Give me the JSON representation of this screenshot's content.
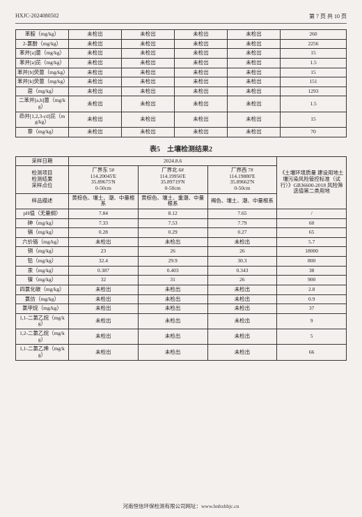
{
  "header": {
    "doc_id": "HXJC-2024080502",
    "page_info": "第 7 页 共 10 页"
  },
  "table1": {
    "col_widths": [
      "16%",
      "16%",
      "16%",
      "16%",
      "16%",
      "20%"
    ],
    "rows": [
      [
        "苯胺（mg/kg）",
        "未检出",
        "未检出",
        "未检出",
        "未检出",
        "260"
      ],
      [
        "2-氯酚（mg/kg）",
        "未检出",
        "未检出",
        "未检出",
        "未检出",
        "2256"
      ],
      [
        "苯并[a]蒽（mg/kg）",
        "未检出",
        "未检出",
        "未检出",
        "未检出",
        "15"
      ],
      [
        "苯并[a]芘（mg/kg）",
        "未检出",
        "未检出",
        "未检出",
        "未检出",
        "1.5"
      ],
      [
        "苯并[b]荧蒽（mg/kg）",
        "未检出",
        "未检出",
        "未检出",
        "未检出",
        "15"
      ],
      [
        "苯并[k]荧蒽（mg/kg）",
        "未检出",
        "未检出",
        "未检出",
        "未检出",
        "151"
      ],
      [
        "䓛（mg/kg）",
        "未检出",
        "未检出",
        "未检出",
        "未检出",
        "1293"
      ],
      [
        "二苯并[a,h]蒽（mg/kg）",
        "未检出",
        "未检出",
        "未检出",
        "未检出",
        "1.5"
      ],
      [
        "茚并[1,2,3-cd]芘（mg/kg）",
        "未检出",
        "未检出",
        "未检出",
        "未检出",
        "15"
      ],
      [
        "萘（mg/kg）",
        "未检出",
        "未检出",
        "未检出",
        "未检出",
        "70"
      ]
    ]
  },
  "caption2": "表5　土壤检测结果2",
  "table2": {
    "col_widths": [
      "16%",
      "21%",
      "21%",
      "21%",
      "21%"
    ],
    "head": {
      "r1c1": "采样日期",
      "r1c2": "2024.8.6",
      "r1c3": "《土壤环境质量 建设用地土壤污染风险管控标准（试行）》GB36600-2018 风险筛选值第二类用地",
      "r2c1": "检测项目\n检测结果\n采样点位",
      "r2c2": "厂界东 5#\n114.20045'E\n35.89675'N\n0-50cm",
      "r2c3": "厂界北 6#\n114.19956'E\n35.89719'N\n0-50cm",
      "r2c4": "厂界西 7#\n114.19880'E\n35.89662'N\n0-50cm",
      "r3c1": "样品描述",
      "r3c2": "黄棕色、壤土、潮、中量根系",
      "r3c3": "黄棕色、壤土、重潮、中量根系",
      "r3c4": "褐色、壤土、潮、中量根系"
    },
    "rows": [
      [
        "pH值（无量纲）",
        "7.84",
        "8.12",
        "7.65",
        "/"
      ],
      [
        "砷（mg/kg）",
        "7.33",
        "7.53",
        "7.79",
        "60"
      ],
      [
        "镉（mg/kg）",
        "0.28",
        "0.29",
        "0.27",
        "65"
      ],
      [
        "六价铬（mg/kg）",
        "未检出",
        "未检出",
        "未检出",
        "5.7"
      ],
      [
        "铜（mg/kg）",
        "23",
        "26",
        "26",
        "18000"
      ],
      [
        "铅（mg/kg）",
        "32.4",
        "29.9",
        "30.3",
        "800"
      ],
      [
        "汞（mg/kg）",
        "0.387",
        "0.403",
        "0.343",
        "38"
      ],
      [
        "镍（mg/kg）",
        "32",
        "31",
        "26",
        "900"
      ],
      [
        "四氯化碳（mg/kg）",
        "未检出",
        "未检出",
        "未检出",
        "2.8"
      ],
      [
        "氯仿（mg/kg）",
        "未检出",
        "未检出",
        "未检出",
        "0.9"
      ],
      [
        "氯甲烷（mg/kg）",
        "未检出",
        "未检出",
        "未检出",
        "37"
      ],
      [
        "1,1-二氯乙烷（mg/kg）",
        "未检出",
        "未检出",
        "未检出",
        "9"
      ],
      [
        "1,2-二氯乙烷（mg/kg）",
        "未检出",
        "未检出",
        "未检出",
        "5"
      ],
      [
        "1,1-二氯乙烯（mg/kg）",
        "未检出",
        "未检出",
        "未检出",
        "66"
      ]
    ]
  },
  "footer": "河南恒信环保检测有限公司网址：www.hnhxhbjc.cn"
}
